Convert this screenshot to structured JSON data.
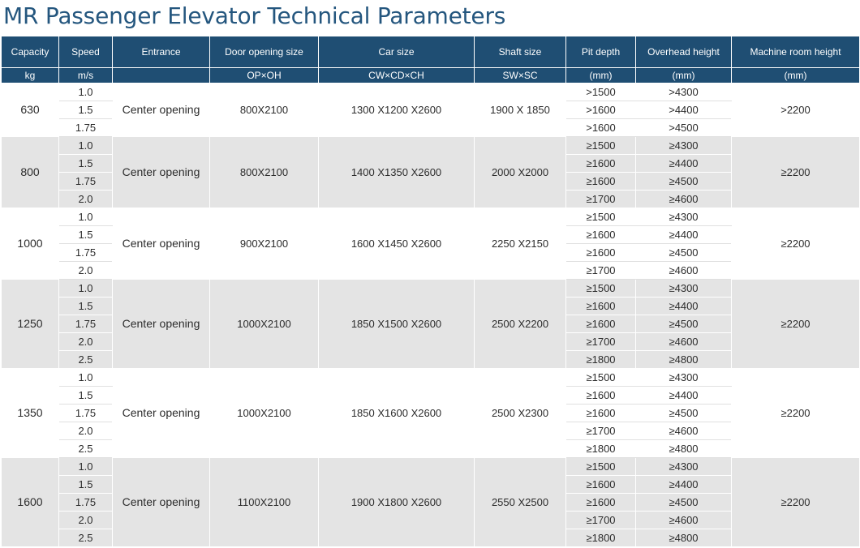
{
  "title": "MR Passenger Elevator Technical Parameters",
  "header": {
    "columns": [
      "Capacity",
      "Speed",
      "Entrance",
      "Door opening size",
      "Car size",
      "Shaft size",
      "Pit depth",
      "Overhead height",
      "Machine room height"
    ],
    "units": [
      "kg",
      "m/s",
      "",
      "OP×OH",
      "CW×CD×CH",
      "SW×SC",
      "(mm)",
      "(mm)",
      "(mm)"
    ]
  },
  "groups": [
    {
      "capacity": "630",
      "entrance": "Center opening",
      "door": "800X2100",
      "car": "1300 X1200 X2600",
      "shaft": "1900 X 1850",
      "machine": ">2200",
      "rows": [
        {
          "speed": "1.0",
          "pit": ">1500",
          "overhead": ">4300"
        },
        {
          "speed": "1.5",
          "pit": ">1600",
          "overhead": ">4400"
        },
        {
          "speed": "1.75",
          "pit": ">1600",
          "overhead": ">4500"
        }
      ]
    },
    {
      "capacity": "800",
      "entrance": "Center opening",
      "door": "800X2100",
      "car": "1400 X1350 X2600",
      "shaft": "2000 X2000",
      "machine": "≥2200",
      "rows": [
        {
          "speed": "1.0",
          "pit": "≥1500",
          "overhead": "≥4300"
        },
        {
          "speed": "1.5",
          "pit": "≥1600",
          "overhead": "≥4400"
        },
        {
          "speed": "1.75",
          "pit": "≥1600",
          "overhead": "≥4500"
        },
        {
          "speed": "2.0",
          "pit": "≥1700",
          "overhead": "≥4600"
        }
      ]
    },
    {
      "capacity": "1000",
      "entrance": "Center opening",
      "door": "900X2100",
      "car": "1600 X1450 X2600",
      "shaft": "2250 X2150",
      "machine": "≥2200",
      "rows": [
        {
          "speed": "1.0",
          "pit": "≥1500",
          "overhead": "≥4300"
        },
        {
          "speed": "1.5",
          "pit": "≥1600",
          "overhead": "≥4400"
        },
        {
          "speed": "1.75",
          "pit": "≥1600",
          "overhead": "≥4500"
        },
        {
          "speed": "2.0",
          "pit": "≥1700",
          "overhead": "≥4600"
        }
      ]
    },
    {
      "capacity": "1250",
      "entrance": "Center opening",
      "door": "1000X2100",
      "car": "1850 X1500 X2600",
      "shaft": "2500 X2200",
      "machine": "≥2200",
      "rows": [
        {
          "speed": "1.0",
          "pit": "≥1500",
          "overhead": "≥4300"
        },
        {
          "speed": "1.5",
          "pit": "≥1600",
          "overhead": "≥4400"
        },
        {
          "speed": "1.75",
          "pit": "≥1600",
          "overhead": "≥4500"
        },
        {
          "speed": "2.0",
          "pit": "≥1700",
          "overhead": "≥4600"
        },
        {
          "speed": "2.5",
          "pit": "≥1800",
          "overhead": "≥4800"
        }
      ]
    },
    {
      "capacity": "1350",
      "entrance": "Center opening",
      "door": "1000X2100",
      "car": "1850 X1600 X2600",
      "shaft": "2500 X2300",
      "machine": "≥2200",
      "rows": [
        {
          "speed": "1.0",
          "pit": "≥1500",
          "overhead": "≥4300"
        },
        {
          "speed": "1.5",
          "pit": "≥1600",
          "overhead": "≥4400"
        },
        {
          "speed": "1.75",
          "pit": "≥1600",
          "overhead": "≥4500"
        },
        {
          "speed": "2.0",
          "pit": "≥1700",
          "overhead": "≥4600"
        },
        {
          "speed": "2.5",
          "pit": "≥1800",
          "overhead": "≥4800"
        }
      ]
    },
    {
      "capacity": "1600",
      "entrance": "Center opening",
      "door": "1100X2100",
      "car": "1900 X1800 X2600",
      "shaft": "2550 X2500",
      "machine": "≥2200",
      "rows": [
        {
          "speed": "1.0",
          "pit": "≥1500",
          "overhead": "≥4300"
        },
        {
          "speed": "1.5",
          "pit": "≥1600",
          "overhead": "≥4400"
        },
        {
          "speed": "1.75",
          "pit": "≥1600",
          "overhead": "≥4500"
        },
        {
          "speed": "2.0",
          "pit": "≥1700",
          "overhead": "≥4600"
        },
        {
          "speed": "2.5",
          "pit": "≥1800",
          "overhead": "≥4800"
        }
      ]
    }
  ]
}
